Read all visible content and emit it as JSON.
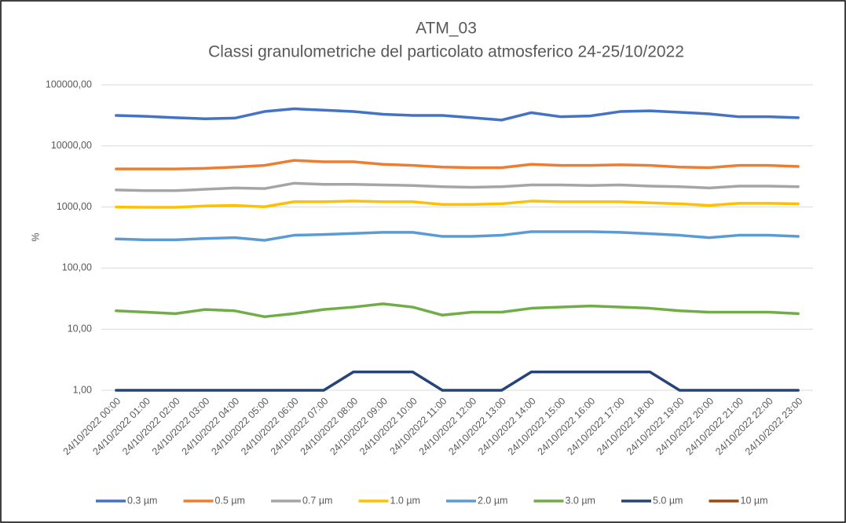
{
  "chart_data": {
    "type": "line",
    "title": "ATM_03",
    "subtitle": "Classi granulometriche del particolato atmosferico 24-25/10/2022",
    "y_label": "%",
    "log_scale": true,
    "grid": true,
    "legend": "bottom",
    "categories": [
      "24/10/2022 00:00",
      "24/10/2022 01:00",
      "24/10/2022 02:00",
      "24/10/2022 03:00",
      "24/10/2022 04:00",
      "24/10/2022 05:00",
      "24/10/2022 06:00",
      "24/10/2022 07:00",
      "24/10/2022 08:00",
      "24/10/2022 09:00",
      "24/10/2022 10:00",
      "24/10/2022 11:00",
      "24/10/2022 12:00",
      "24/10/2022 13:00",
      "24/10/2022 14:00",
      "24/10/2022 15:00",
      "24/10/2022 16:00",
      "24/10/2022 17:00",
      "24/10/2022 18:00",
      "24/10/2022 19:00",
      "24/10/2022 20:00",
      "24/10/2022 21:00",
      "24/10/2022 22:00",
      "24/10/2022 23:00"
    ],
    "ylim": [
      1,
      100000
    ],
    "yticks": [
      {
        "value": 1,
        "label": "1,00"
      },
      {
        "value": 10,
        "label": "10,00"
      },
      {
        "value": 100,
        "label": "100,00"
      },
      {
        "value": 1000,
        "label": "1000,00"
      },
      {
        "value": 10000,
        "label": "10000,00"
      },
      {
        "value": 100000,
        "label": "100000,00"
      }
    ],
    "series": [
      {
        "name": "0.3 µm",
        "color": "#4472c4",
        "values": [
          31500,
          30500,
          29000,
          27800,
          28500,
          36500,
          40500,
          38500,
          36500,
          33000,
          31500,
          31500,
          29000,
          26500,
          35000,
          30000,
          31000,
          36500,
          37500,
          35500,
          33500,
          30000,
          30000,
          29000
        ]
      },
      {
        "name": "0.5 µm",
        "color": "#ed7d31",
        "values": [
          4200,
          4200,
          4200,
          4300,
          4500,
          4800,
          5800,
          5500,
          5500,
          5000,
          4800,
          4500,
          4400,
          4400,
          5000,
          4800,
          4800,
          4900,
          4800,
          4500,
          4400,
          4800,
          4800,
          4600
        ]
      },
      {
        "name": "0.7 µm",
        "color": "#a5a5a5",
        "values": [
          1900,
          1850,
          1850,
          1950,
          2050,
          2000,
          2450,
          2350,
          2350,
          2300,
          2250,
          2150,
          2100,
          2150,
          2300,
          2300,
          2250,
          2300,
          2200,
          2150,
          2050,
          2200,
          2200,
          2150
        ]
      },
      {
        "name": "1.0 µm",
        "color": "#ffc000",
        "values": [
          1000,
          990,
          990,
          1040,
          1060,
          1010,
          1220,
          1220,
          1250,
          1220,
          1220,
          1100,
          1100,
          1130,
          1250,
          1220,
          1220,
          1220,
          1170,
          1130,
          1060,
          1150,
          1150,
          1130
        ]
      },
      {
        "name": "2.0 µm",
        "color": "#5b9bd5",
        "values": [
          300,
          290,
          290,
          305,
          315,
          285,
          345,
          355,
          370,
          385,
          385,
          330,
          330,
          345,
          395,
          395,
          395,
          385,
          365,
          345,
          315,
          345,
          345,
          330
        ]
      },
      {
        "name": "3.0 µm",
        "color": "#70ad47",
        "values": [
          20,
          19,
          18,
          21,
          20,
          16,
          18,
          21,
          23,
          26,
          23,
          17,
          19,
          19,
          22,
          23,
          24,
          23,
          22,
          20,
          19,
          19,
          19,
          18
        ]
      },
      {
        "name": "5.0 µm",
        "color": "#264478",
        "values": [
          1,
          1,
          1,
          1,
          1,
          1,
          1,
          1,
          2,
          2,
          2,
          1,
          1,
          1,
          2,
          2,
          2,
          2,
          2,
          1,
          1,
          1,
          1,
          1
        ]
      },
      {
        "name": "10 µm",
        "color": "#9e480e",
        "values": [
          null,
          null,
          null,
          null,
          null,
          null,
          null,
          null,
          null,
          null,
          null,
          null,
          null,
          null,
          null,
          null,
          null,
          null,
          null,
          null,
          null,
          null,
          null,
          null
        ]
      }
    ]
  }
}
